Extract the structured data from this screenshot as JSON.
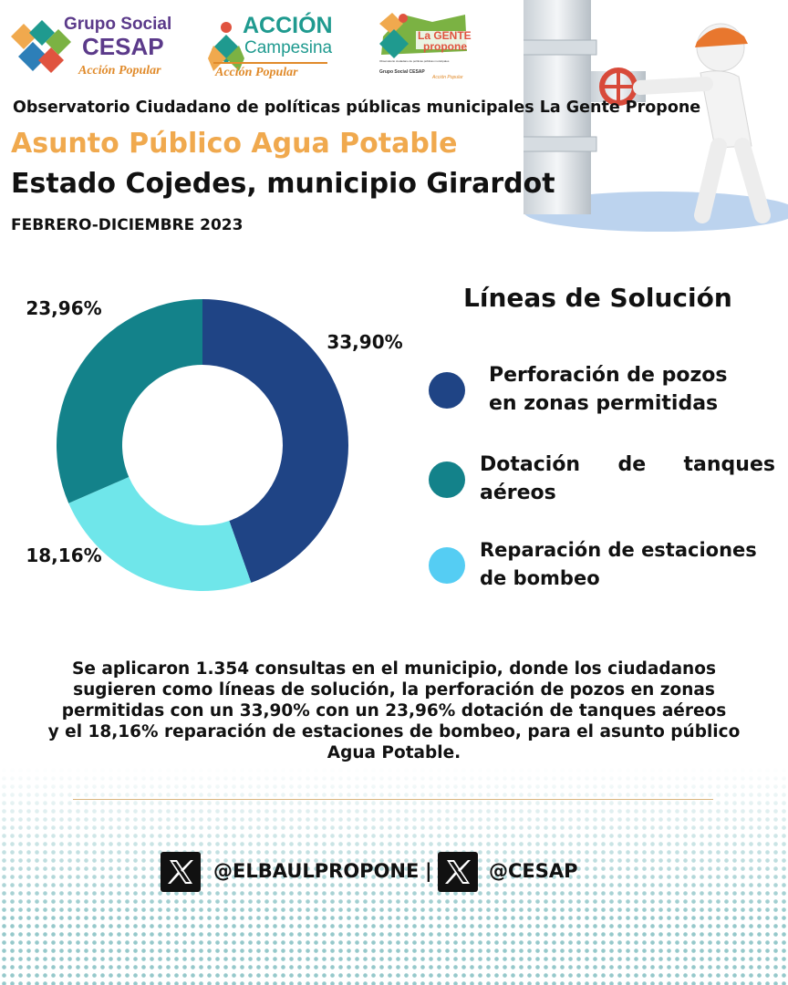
{
  "logos": [
    {
      "name": "Grupo Social CESAP",
      "line1": "Grupo Social",
      "line2": "CESAP",
      "tagline": "Acción Popular"
    },
    {
      "name": "Acción Campesina",
      "line1": "ACCIÓN",
      "line2": "Campesina",
      "tagline": "Acción Popular"
    },
    {
      "name": "La Gente Propone",
      "line1": "La GENTE",
      "line2": "propone",
      "small": "Observatorio ciudadano de políticas públicas municipales",
      "org": "Grupo Social CESAP",
      "tagline": "Acción Popular"
    }
  ],
  "header": {
    "observatory": "Observatorio Ciudadano de políticas públicas municipales La Gente Propone",
    "topic": "Asunto Público Agua Potable",
    "location": "Estado Cojedes, municipio Girardot",
    "period": "FEBRERO-DICIEMBRE 2023"
  },
  "colors": {
    "topic": "#f0a94e",
    "series_1": "#1f4485",
    "series_2": "#13828a",
    "series_3": "#6fe6ea",
    "legend_3": "#55cdf3",
    "divider": "#d9b57f"
  },
  "chart_data": {
    "type": "pie",
    "donut": true,
    "title": "Líneas de Solución",
    "categories": [
      "Perforación de pozos en zonas permitidas",
      "Dotación de tanques aéreos",
      "Reparación de estaciones de bombeo"
    ],
    "values": [
      33.9,
      23.96,
      18.16
    ],
    "labels": [
      "33,90%",
      "23,96%",
      "18,16%"
    ],
    "legend_position": "right"
  },
  "legend_lines": [
    [
      "Perforación de pozos",
      "en zonas permitidas"
    ],
    [
      "Dotación de tanques",
      "aéreos"
    ],
    [
      "Reparación de estaciones",
      "de bombeo"
    ]
  ],
  "summary_lines": [
    "Se aplicaron 1.354 consultas en el municipio, donde los ciudadanos",
    "sugieren como líneas de solución, la perforación de pozos en zonas",
    "permitidas con un 33,90%  con un  23,96%  dotación de tanques aéreos",
    "y el 18,16%  reparación de estaciones de bombeo, para el asunto público",
    "Agua Potable."
  ],
  "social": {
    "icon_1": "x-logo-icon",
    "handle_1": "@ELBAULPROPONE",
    "separator": "|",
    "icon_2": "x-logo-icon",
    "handle_2": "@CESAP"
  }
}
